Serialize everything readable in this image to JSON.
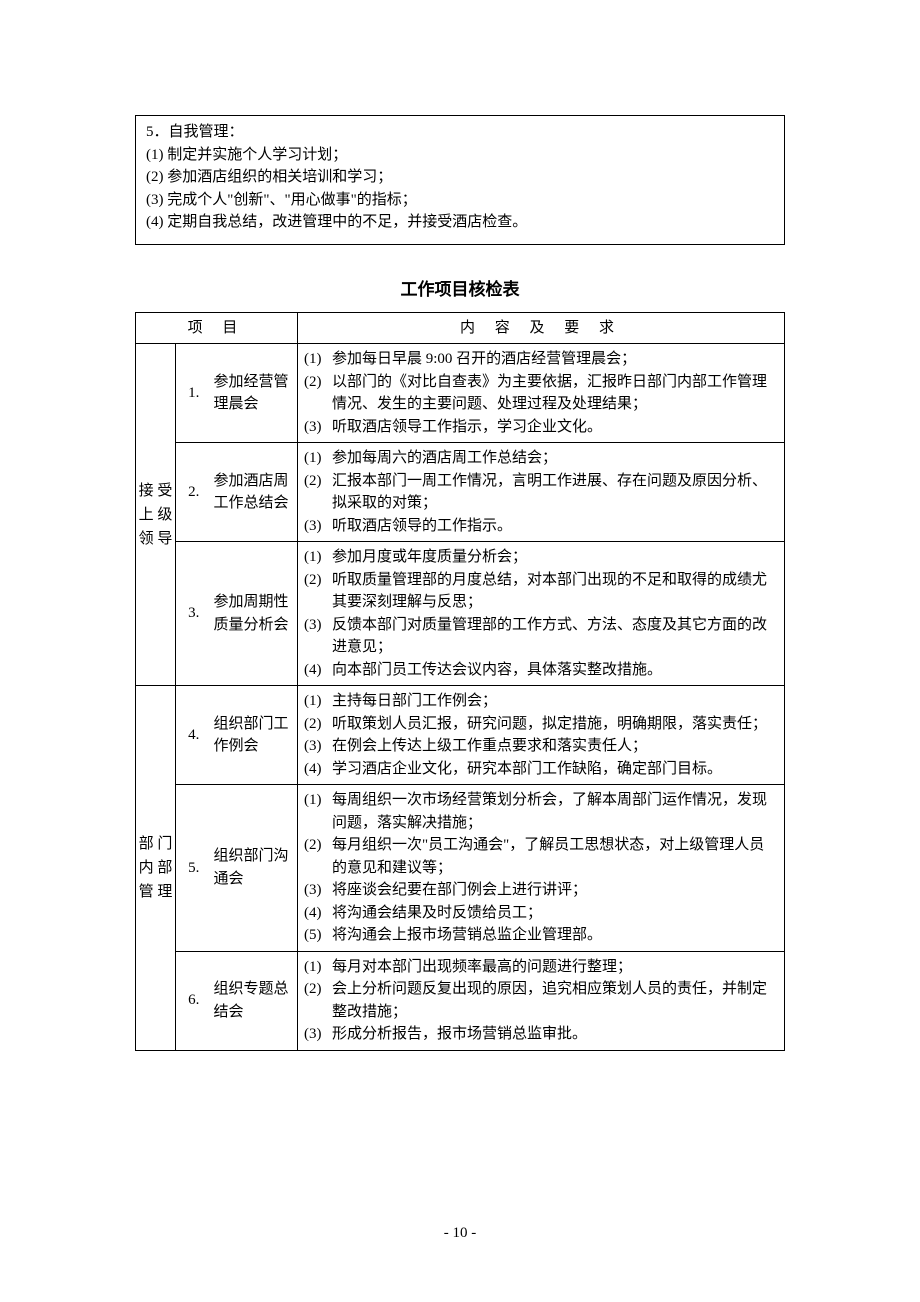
{
  "topBox": {
    "head": "5．自我管理：",
    "items": [
      "(1) 制定并实施个人学习计划；",
      "(2) 参加酒店组织的相关培训和学习；",
      "(3) 完成个人\"创新\"、\"用心做事\"的指标；",
      "(4) 定期自我总结，改进管理中的不足，并接受酒店检查。"
    ]
  },
  "title": "工作项目核检表",
  "headers": {
    "col1": "项   目",
    "col2": "内 容 及 要 求"
  },
  "groups": [
    {
      "label": "接 受\n上 级\n领 导",
      "rows": [
        {
          "num": "1.",
          "name": "参加经营管理晨会",
          "details": [
            {
              "m": "(1)",
              "t": "参加每日早晨 9:00 召开的酒店经营管理晨会；"
            },
            {
              "m": "(2)",
              "t": "以部门的《对比自查表》为主要依据，汇报昨日部门内部工作管理情况、发生的主要问题、处理过程及处理结果；"
            },
            {
              "m": "(3)",
              "t": "听取酒店领导工作指示，学习企业文化。"
            }
          ]
        },
        {
          "num": "2.",
          "name": "参加酒店周工作总结会",
          "details": [
            {
              "m": "(1)",
              "t": "参加每周六的酒店周工作总结会；"
            },
            {
              "m": "(2)",
              "t": "汇报本部门一周工作情况，言明工作进展、存在问题及原因分析、拟采取的对策；"
            },
            {
              "m": "(3)",
              "t": "听取酒店领导的工作指示。"
            }
          ]
        },
        {
          "num": "3.",
          "name": "参加周期性质量分析会",
          "details": [
            {
              "m": "(1)",
              "t": "参加月度或年度质量分析会；"
            },
            {
              "m": "(2)",
              "t": "听取质量管理部的月度总结，对本部门出现的不足和取得的成绩尤其要深刻理解与反思；"
            },
            {
              "m": "(3)",
              "t": "反馈本部门对质量管理部的工作方式、方法、态度及其它方面的改进意见；"
            },
            {
              "m": "(4)",
              "t": "向本部门员工传达会议内容，具体落实整改措施。"
            }
          ]
        }
      ]
    },
    {
      "label": "部 门\n内 部\n管 理",
      "rows": [
        {
          "num": "4.",
          "name": "组织部门工作例会",
          "details": [
            {
              "m": "(1)",
              "t": "主持每日部门工作例会；"
            },
            {
              "m": "(2)",
              "t": "听取策划人员汇报，研究问题，拟定措施，明确期限，落实责任；"
            },
            {
              "m": "(3)",
              "t": "在例会上传达上级工作重点要求和落实责任人；"
            },
            {
              "m": "(4)",
              "t": "学习酒店企业文化，研究本部门工作缺陷，确定部门目标。"
            }
          ]
        },
        {
          "num": "5.",
          "name": "组织部门沟通会",
          "details": [
            {
              "m": "(1)",
              "t": "每周组织一次市场经营策划分析会，了解本周部门运作情况，发现问题，落实解决措施；"
            },
            {
              "m": "(2)",
              "t": "每月组织一次\"员工沟通会\"，了解员工思想状态，对上级管理人员的意见和建议等；"
            },
            {
              "m": "(3)",
              "t": "将座谈会纪要在部门例会上进行讲评；"
            },
            {
              "m": "(4)",
              "t": "将沟通会结果及时反馈给员工；"
            },
            {
              "m": "(5)",
              "t": "将沟通会上报市场营销总监企业管理部。"
            }
          ]
        },
        {
          "num": "6.",
          "name": "组织专题总结会",
          "details": [
            {
              "m": "(1)",
              "t": "每月对本部门出现频率最高的问题进行整理；"
            },
            {
              "m": "(2)",
              "t": "会上分析问题反复出现的原因，追究相应策划人员的责任，并制定整改措施；"
            },
            {
              "m": "(3)",
              "t": "形成分析报告，报市场营销总监审批。"
            }
          ]
        }
      ]
    }
  ],
  "pageNum": "- 10 -"
}
